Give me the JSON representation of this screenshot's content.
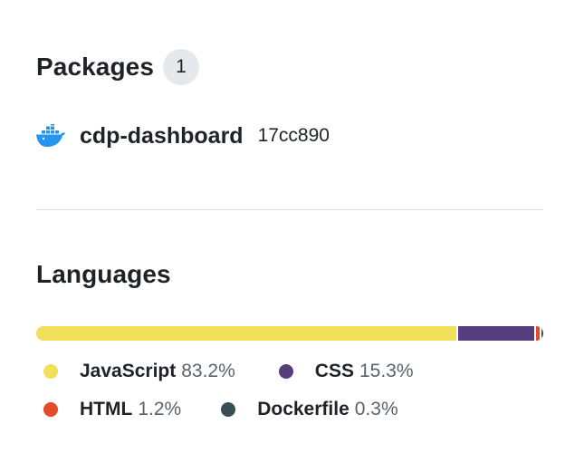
{
  "packages": {
    "title": "Packages",
    "count": "1",
    "items": [
      {
        "name": "cdp-dashboard",
        "sha": "17cc890",
        "icon": "docker-icon"
      }
    ]
  },
  "languages": {
    "title": "Languages",
    "items": [
      {
        "name": "JavaScript",
        "percent": "83.2%",
        "value": 83.2,
        "color": "#f1e05a"
      },
      {
        "name": "CSS",
        "percent": "15.3%",
        "value": 15.3,
        "color": "#563d7c"
      },
      {
        "name": "HTML",
        "percent": "1.2%",
        "value": 1.2,
        "color": "#e34c26"
      },
      {
        "name": "Dockerfile",
        "percent": "0.3%",
        "value": 0.3,
        "color": "#384d54"
      }
    ]
  }
}
